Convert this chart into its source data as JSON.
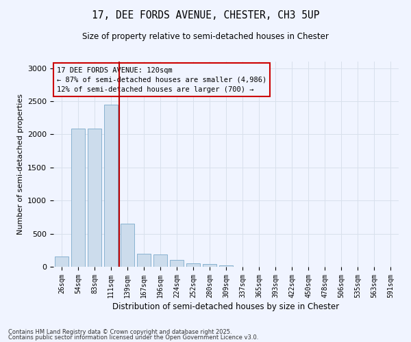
{
  "title_line1": "17, DEE FORDS AVENUE, CHESTER, CH3 5UP",
  "title_line2": "Size of property relative to semi-detached houses in Chester",
  "xlabel": "Distribution of semi-detached houses by size in Chester",
  "ylabel": "Number of semi-detached properties",
  "categories": [
    "26sqm",
    "54sqm",
    "83sqm",
    "111sqm",
    "139sqm",
    "167sqm",
    "196sqm",
    "224sqm",
    "252sqm",
    "280sqm",
    "309sqm",
    "337sqm",
    "365sqm",
    "393sqm",
    "422sqm",
    "450sqm",
    "478sqm",
    "506sqm",
    "535sqm",
    "563sqm",
    "591sqm"
  ],
  "values": [
    150,
    2090,
    2090,
    2450,
    650,
    200,
    190,
    100,
    50,
    40,
    20,
    0,
    0,
    0,
    0,
    0,
    0,
    0,
    0,
    0,
    0
  ],
  "bar_color": "#ccdcec",
  "bar_edge_color": "#7aaaca",
  "grid_color": "#d8e0ec",
  "annotation_title": "17 DEE FORDS AVENUE: 120sqm",
  "annotation_line2": "← 87% of semi-detached houses are smaller (4,986)",
  "annotation_line3": "12% of semi-detached houses are larger (700) →",
  "vline_color": "#bb0000",
  "box_edge_color": "#cc0000",
  "ylim": [
    0,
    3100
  ],
  "yticks": [
    0,
    500,
    1000,
    1500,
    2000,
    2500,
    3000
  ],
  "footnote1": "Contains HM Land Registry data © Crown copyright and database right 2025.",
  "footnote2": "Contains public sector information licensed under the Open Government Licence v3.0.",
  "bg_color": "#f0f4ff"
}
